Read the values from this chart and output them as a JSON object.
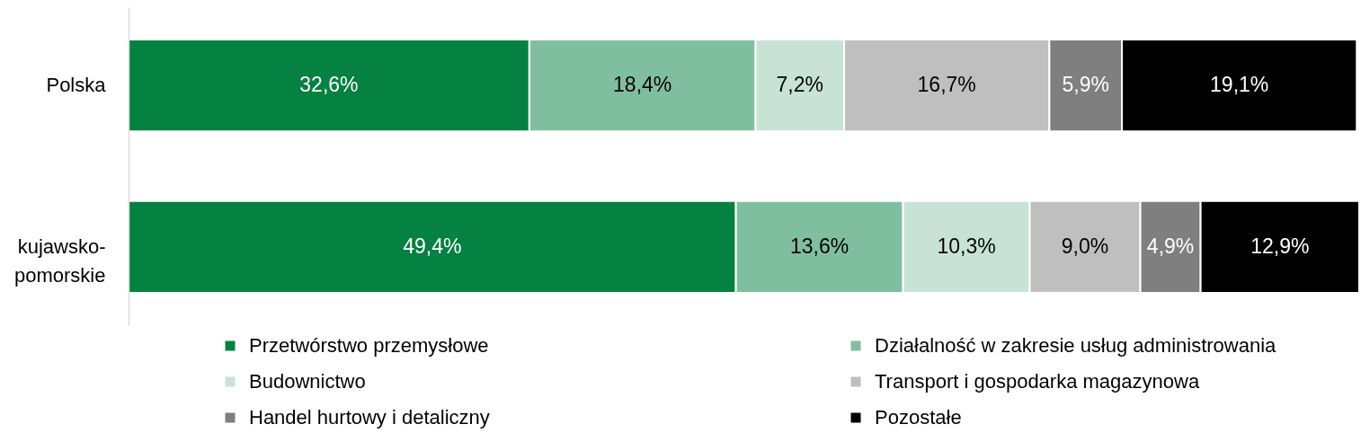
{
  "chart_data": {
    "type": "bar",
    "orientation": "horizontal",
    "stacked": true,
    "categories": [
      "Polska",
      "kujawsko-pomorskie"
    ],
    "series": [
      {
        "name": "Przetwórstwo przemysłowe",
        "color": "#058142",
        "values": [
          32.6,
          49.4
        ],
        "value_labels": [
          "32,6%",
          "49,4%"
        ]
      },
      {
        "name": "Działalność w zakresie usług administrowania",
        "color": "#7fbf9f",
        "values": [
          18.4,
          13.6
        ],
        "value_labels": [
          "18,4%",
          "13,6%"
        ]
      },
      {
        "name": "Budownictwo",
        "color": "#c8e3d5",
        "values": [
          7.2,
          10.3
        ],
        "value_labels": [
          "7,2%",
          "10,3%"
        ]
      },
      {
        "name": "Transport i gospodarka magazynowa",
        "color": "#bfbfbf",
        "values": [
          16.7,
          9.0
        ],
        "value_labels": [
          "16,7%",
          "9,0%"
        ]
      },
      {
        "name": "Handel hurtowy i detaliczny",
        "color": "#7f7f7f",
        "values": [
          5.9,
          4.9
        ],
        "value_labels": [
          "5,9%",
          "4,9%"
        ]
      },
      {
        "name": "Pozostałe",
        "color": "#000000",
        "values": [
          19.1,
          12.9
        ],
        "value_labels": [
          "19,1%",
          "12,9%"
        ]
      }
    ],
    "tick_labels": "y",
    "legend": "bottom"
  }
}
